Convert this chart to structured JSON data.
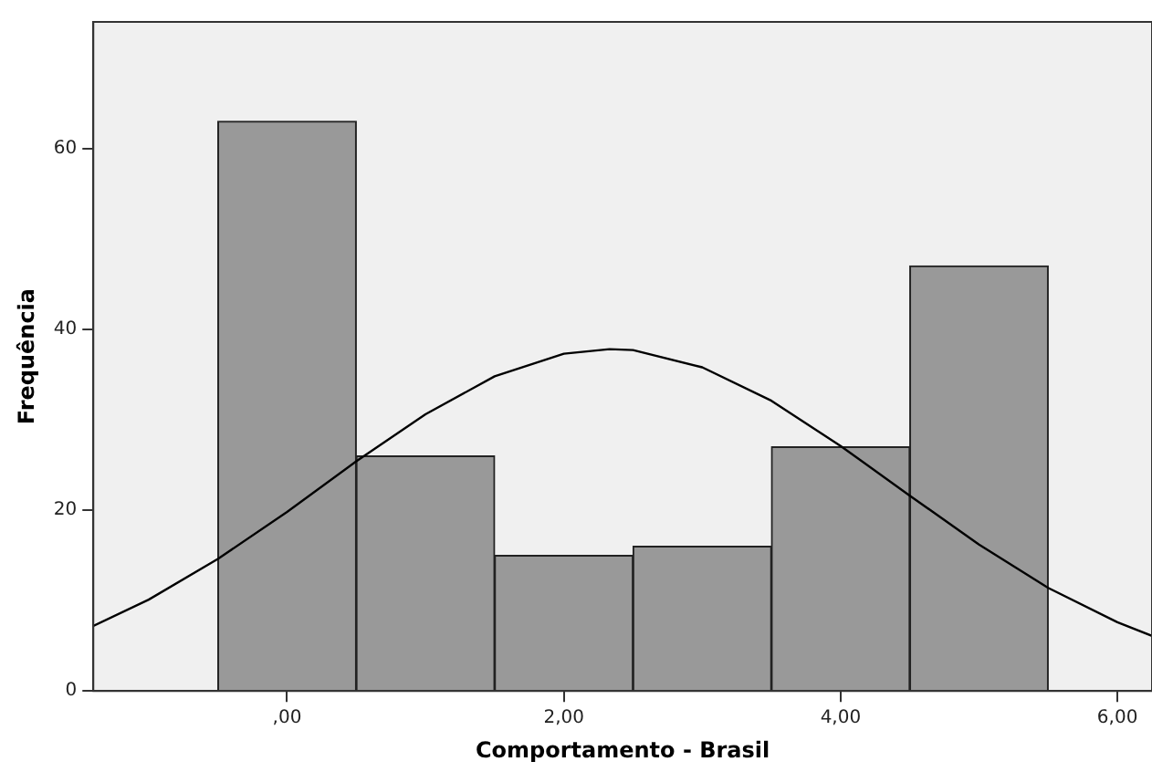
{
  "chart_data": {
    "type": "histogram",
    "xlabel": "Comportamento - Brasil",
    "ylabel": "Frequência",
    "bins": [
      -0.5,
      0.5,
      1.5,
      2.5,
      3.5,
      4.5,
      5.5
    ],
    "values": [
      63,
      26,
      15,
      16,
      27,
      47
    ],
    "color": "#999999",
    "series": [
      {
        "type": "line",
        "color": "#000000",
        "x": [
          -1.4,
          -1.0,
          -0.5,
          0,
          0.5,
          1,
          1.5,
          2,
          2.33,
          2.5,
          3,
          3.5,
          4,
          4.5,
          5,
          5.5,
          6,
          6.25
        ],
        "values": [
          7.2,
          10.1,
          14.6,
          19.8,
          25.4,
          30.6,
          34.8,
          37.3,
          37.8,
          37.7,
          35.8,
          32.1,
          27.1,
          21.6,
          16.2,
          11.4,
          7.6,
          6.1
        ]
      }
    ],
    "xlim": [
      -1.4,
      6.25
    ],
    "xticks": [
      {
        "value": 0,
        "label": ",00"
      },
      {
        "value": 2,
        "label": "2,00"
      },
      {
        "value": 4,
        "label": "4,00"
      },
      {
        "value": 6,
        "label": "6,00"
      }
    ],
    "ylim": [
      0,
      74
    ],
    "yticks": [
      0,
      20,
      40,
      60
    ],
    "grid": false,
    "legend": false,
    "marker": "none"
  }
}
